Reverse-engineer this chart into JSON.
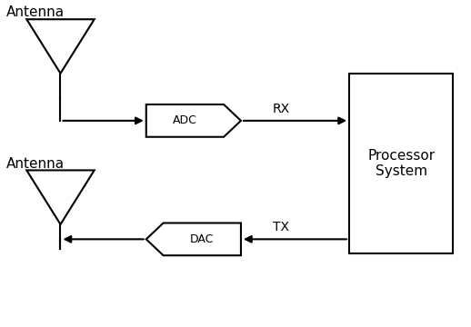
{
  "background_color": "#ffffff",
  "line_color": "#000000",
  "text_color": "#000000",
  "fig_width": 5.18,
  "fig_height": 3.6,
  "antenna1_label": "Antenna",
  "antenna2_label": "Antenna",
  "adc_label": "ADC",
  "dac_label": "DAC",
  "rx_label": "RX",
  "tx_label": "TX",
  "processor_label": "Processor\nSystem",
  "xlim": [
    0,
    10.36
  ],
  "ylim": [
    0,
    7.2
  ]
}
